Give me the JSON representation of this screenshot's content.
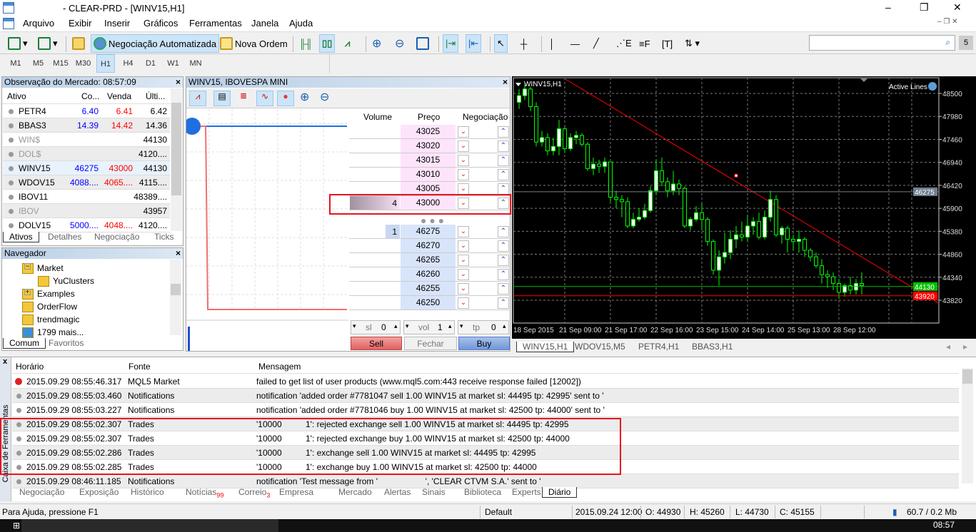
{
  "window": {
    "title": "- CLEAR-PRD - [WINV15,H1]",
    "controls": [
      "–",
      "❐",
      "✕"
    ]
  },
  "menu": [
    "Arquivo",
    "Exibir",
    "Inserir",
    "Gráficos",
    "Ferramentas",
    "Janela",
    "Ajuda"
  ],
  "toolbar": {
    "auto_trading": "Negociação Automatizada",
    "new_order": "Nova Ordem",
    "search_placeholder": ""
  },
  "timeframes": [
    "M1",
    "M5",
    "M15",
    "M30",
    "H1",
    "H4",
    "D1",
    "W1",
    "MN"
  ],
  "active_timeframe": "H1",
  "market_watch": {
    "title": "Observação do Mercado: 08:57:09",
    "columns": [
      "Ativo",
      "Co...",
      "Venda",
      "Últi..."
    ],
    "rows": [
      {
        "symbol": "PETR4",
        "bid": "6.40",
        "ask": "6.41",
        "last": "6.42",
        "dim": false
      },
      {
        "symbol": "BBAS3",
        "bid": "14.39",
        "ask": "14.42",
        "last": "14.36",
        "dim": false
      },
      {
        "symbol": "WIN$",
        "bid": "",
        "ask": "",
        "last": "44130",
        "dim": true
      },
      {
        "symbol": "DOL$",
        "bid": "",
        "ask": "",
        "last": "4120....",
        "dim": true
      },
      {
        "symbol": "WINV15",
        "bid": "46275",
        "ask": "43000",
        "last": "44130",
        "dim": false
      },
      {
        "symbol": "WDOV15",
        "bid": "4088....",
        "ask": "4065....",
        "last": "4115....",
        "dim": false
      },
      {
        "symbol": "IBOV11",
        "bid": "",
        "ask": "",
        "last": "48389....",
        "dim": false
      },
      {
        "symbol": "IBOV",
        "bid": "",
        "ask": "",
        "last": "43957",
        "dim": true
      },
      {
        "symbol": "DOLV15",
        "bid": "5000....",
        "ask": "4048....",
        "last": "4120....",
        "dim": false
      }
    ],
    "tabs": [
      "Ativos",
      "Detalhes",
      "Negociação",
      "Ticks"
    ]
  },
  "navigator": {
    "title": "Navegador",
    "items": [
      {
        "label": "Market",
        "icon": "folder-indicator-icon"
      },
      {
        "label": "YuClusters",
        "icon": "indicator-icon"
      },
      {
        "label": "Examples",
        "icon": "indicator-icon"
      },
      {
        "label": "OrderFlow",
        "icon": "indicator-icon"
      },
      {
        "label": "trendmagic",
        "icon": "indicator-icon"
      },
      {
        "label": "1799 mais...",
        "icon": "download-icon"
      }
    ],
    "tabs": [
      "Comum",
      "Favoritos"
    ]
  },
  "dom": {
    "title": "WINV15, IBOVESPA MINI",
    "columns": [
      "Volume",
      "Preço",
      "Negociação"
    ],
    "asks": [
      {
        "price": "43025",
        "volume": ""
      },
      {
        "price": "43020",
        "volume": ""
      },
      {
        "price": "43015",
        "volume": ""
      },
      {
        "price": "43010",
        "volume": ""
      },
      {
        "price": "43005",
        "volume": ""
      },
      {
        "price": "43000",
        "volume": "4"
      }
    ],
    "bids": [
      {
        "price": "46275",
        "volume": "1"
      },
      {
        "price": "46270",
        "volume": ""
      },
      {
        "price": "46265",
        "volume": ""
      },
      {
        "price": "46260",
        "volume": ""
      },
      {
        "price": "46255",
        "volume": ""
      },
      {
        "price": "46250",
        "volume": ""
      }
    ],
    "sl_label": "sl",
    "sl": "0",
    "vol_label": "vol",
    "vol": "1",
    "tp_label": "tp",
    "tp": "0",
    "sell": "Sell",
    "close": "Fechar",
    "buy": "Buy"
  },
  "chart_tabs": [
    "WINV15,H1",
    "WDOV15,M5",
    "PETR4,H1",
    "BBAS3,H1"
  ],
  "chart_data": {
    "type": "candlestick",
    "symbol_label": "WINV15,H1",
    "indicator_label": "Active Lines",
    "y_ticks": [
      48500,
      47980,
      47460,
      46940,
      46420,
      45900,
      45380,
      44860,
      44340,
      43820
    ],
    "ylim": [
      43300,
      48850
    ],
    "x_ticks": [
      "18 Sep 2015",
      "21 Sep 09:00",
      "21 Sep 17:00",
      "22 Sep 16:00",
      "23 Sep 15:00",
      "24 Sep 14:00",
      "25 Sep 13:00",
      "28 Sep 12:00"
    ],
    "grid": true,
    "levels": [
      {
        "price": 46275,
        "label": "46275",
        "color": "#708090"
      },
      {
        "price": 44130,
        "label": "44130",
        "color": "#00c000"
      },
      {
        "price": 43920,
        "label": "43920",
        "color": "#ff0000"
      }
    ],
    "trendline": {
      "color": "#ff0000"
    },
    "ohlc": [
      [
        48300,
        48600,
        48150,
        48450
      ],
      [
        48450,
        48700,
        48350,
        48600
      ],
      [
        48600,
        48650,
        48100,
        48200
      ],
      [
        48200,
        48300,
        47300,
        47400
      ],
      [
        47400,
        47650,
        47300,
        47500
      ],
      [
        47500,
        47600,
        47100,
        47200
      ],
      [
        47200,
        47500,
        47100,
        47300
      ],
      [
        47300,
        47900,
        47100,
        47700
      ],
      [
        47700,
        47750,
        47150,
        47250
      ],
      [
        47250,
        47600,
        47200,
        47500
      ],
      [
        47500,
        47650,
        47350,
        47550
      ],
      [
        47550,
        47600,
        47300,
        47350
      ],
      [
        47350,
        47400,
        46750,
        46800
      ],
      [
        46800,
        47050,
        46650,
        46900
      ],
      [
        46900,
        47000,
        46700,
        46850
      ],
      [
        46850,
        47050,
        46700,
        46950
      ],
      [
        46950,
        46950,
        46050,
        46150
      ],
      [
        46150,
        46300,
        45900,
        46100
      ],
      [
        46100,
        46200,
        45700,
        46050
      ],
      [
        46050,
        46150,
        45450,
        45500
      ],
      [
        45500,
        45800,
        45450,
        45650
      ],
      [
        45650,
        45900,
        45600,
        45700
      ],
      [
        45700,
        46000,
        45650,
        45850
      ],
      [
        45850,
        46400,
        45800,
        46300
      ],
      [
        46300,
        47000,
        46200,
        46750
      ],
      [
        46750,
        47050,
        46400,
        46500
      ],
      [
        46500,
        46600,
        46150,
        46300
      ],
      [
        46300,
        46750,
        46200,
        46450
      ],
      [
        46450,
        46550,
        46200,
        46350
      ],
      [
        46350,
        46400,
        45450,
        45500
      ],
      [
        45500,
        45700,
        45400,
        45650
      ],
      [
        45650,
        45950,
        45600,
        45800
      ],
      [
        45800,
        46000,
        45400,
        45650
      ],
      [
        45650,
        45700,
        45050,
        45150
      ],
      [
        45150,
        45200,
        44400,
        44500
      ],
      [
        44500,
        44950,
        44150,
        44800
      ],
      [
        44800,
        45350,
        44650,
        44900
      ],
      [
        44900,
        45400,
        44750,
        45200
      ],
      [
        45200,
        45500,
        45000,
        45300
      ],
      [
        45300,
        45600,
        45150,
        45250
      ],
      [
        45250,
        45750,
        45150,
        45500
      ],
      [
        45500,
        45700,
        45300,
        45600
      ],
      [
        45600,
        45800,
        45200,
        45250
      ],
      [
        45250,
        45850,
        45200,
        45700
      ],
      [
        45700,
        46300,
        45600,
        46100
      ],
      [
        46100,
        46200,
        45250,
        45300
      ],
      [
        45300,
        45500,
        45100,
        45450
      ],
      [
        45450,
        45500,
        44900,
        45200
      ],
      [
        45200,
        45300,
        44950,
        45150
      ],
      [
        45150,
        45400,
        44900,
        45200
      ],
      [
        45200,
        45250,
        44800,
        44950
      ],
      [
        44950,
        45000,
        44700,
        44800
      ],
      [
        44800,
        44900,
        44550,
        44600
      ],
      [
        44600,
        44750,
        44200,
        44400
      ],
      [
        44400,
        44500,
        44100,
        44350
      ],
      [
        44350,
        44450,
        44050,
        44200
      ],
      [
        44200,
        44300,
        43850,
        44000
      ],
      [
        44000,
        44200,
        43900,
        44150
      ],
      [
        44150,
        44350,
        43950,
        44050
      ],
      [
        44050,
        44300,
        43950,
        44200
      ],
      [
        44200,
        44450,
        43950,
        44150
      ]
    ]
  },
  "toolbox": {
    "side_label": "Caixa de Ferramentas",
    "columns": [
      "Horário",
      "Fonte",
      "Mensagem"
    ],
    "rows": [
      {
        "time": "2015.09.29 08:55:46.317",
        "source": "MQL5 Market",
        "message": "failed to get list of user products (www.mql5.com:443 receive response failed [12002])",
        "level": "error"
      },
      {
        "time": "2015.09.29 08:55:03.460",
        "source": "Notifications",
        "message": "notification 'added order #7781047 sell 1.00 WINV15 at market sl: 44495 tp: 42995' sent to '",
        "level": "info"
      },
      {
        "time": "2015.09.29 08:55:03.227",
        "source": "Notifications",
        "message": "notification 'added order #7781046 buy 1.00 WINV15 at market sl: 42500 tp: 44000' sent to '",
        "level": "info"
      },
      {
        "time": "2015.09.29 08:55:02.307",
        "source": "Trades",
        "message": "'10000          1': rejected exchange sell 1.00 WINV15 at market sl: 44495 tp: 42995",
        "level": "info"
      },
      {
        "time": "2015.09.29 08:55:02.307",
        "source": "Trades",
        "message": "'10000          1': rejected exchange buy 1.00 WINV15 at market sl: 42500 tp: 44000",
        "level": "info"
      },
      {
        "time": "2015.09.29 08:55:02.286",
        "source": "Trades",
        "message": "'10000          1': exchange sell 1.00 WINV15 at market sl: 44495 tp: 42995",
        "level": "info"
      },
      {
        "time": "2015.09.29 08:55:02.285",
        "source": "Trades",
        "message": "'10000          1': exchange buy 1.00 WINV15 at market sl: 42500 tp: 44000",
        "level": "info"
      },
      {
        "time": "2015.09.29 08:46:11.185",
        "source": "Notifications",
        "message": "notification 'Test message from '                    ', 'CLEAR CTVM S.A.' sent to '",
        "level": "info"
      }
    ],
    "tabs": [
      {
        "label": "Negociação"
      },
      {
        "label": "Exposição"
      },
      {
        "label": "Histórico"
      },
      {
        "label": "Notícias",
        "badge": "99"
      },
      {
        "label": "Correio",
        "badge": "3"
      },
      {
        "label": "Empresa"
      },
      {
        "label": "Mercado"
      },
      {
        "label": "Alertas"
      },
      {
        "label": "Sinais"
      },
      {
        "label": "Biblioteca"
      },
      {
        "label": "Experts"
      },
      {
        "label": "Diário"
      }
    ],
    "active_tab": "Diário"
  },
  "status": {
    "help": "Para Ajuda, pressione F1",
    "profile": "Default",
    "datetime": "2015.09.24 12:00",
    "open": "O: 44930",
    "high": "H: 45260",
    "low": "L: 44730",
    "close": "C: 45155",
    "traffic": "60.7 / 0.2 Mb"
  },
  "taskbar": {
    "clock": "08:57"
  },
  "colors": {
    "bid": "#0000ff",
    "ask": "#ff0000",
    "highlight": "#e8141e",
    "candle_outline": "#00ff00",
    "chart_bg": "#000000"
  }
}
